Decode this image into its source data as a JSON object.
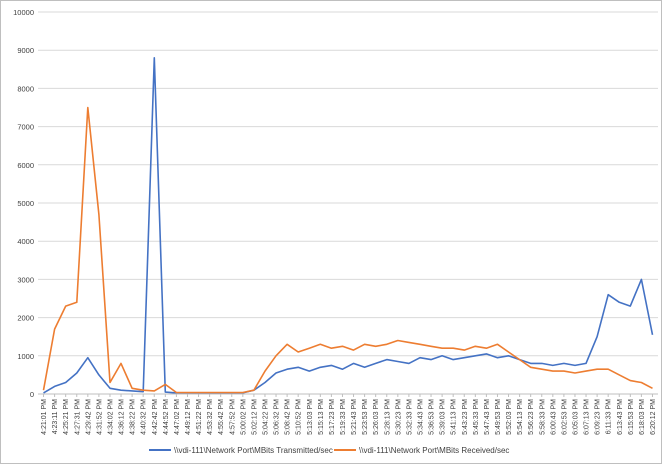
{
  "chart_data": {
    "type": "line",
    "title": "",
    "xlabel": "",
    "ylabel": "",
    "ylim": [
      0,
      10000
    ],
    "yticks": [
      "0",
      "1000",
      "2000",
      "3000",
      "4000",
      "5000",
      "6000",
      "7000",
      "8000",
      "9000",
      "10000"
    ],
    "grid": true,
    "legend_position": "bottom",
    "x_categories": [
      "4:21:01 PM",
      "4:23:11 PM",
      "4:25:21 PM",
      "4:27:31 PM",
      "4:29:42 PM",
      "4:31:52 PM",
      "4:34:02 PM",
      "4:36:12 PM",
      "4:38:22 PM",
      "4:40:32 PM",
      "4:42:42 PM",
      "4:44:52 PM",
      "4:47:02 PM",
      "4:49:12 PM",
      "4:51:22 PM",
      "4:53:32 PM",
      "4:55:42 PM",
      "4:57:52 PM",
      "5:00:02 PM",
      "5:02:12 PM",
      "5:04:22 PM",
      "5:06:32 PM",
      "5:08:42 PM",
      "5:10:52 PM",
      "5:13:03 PM",
      "5:15:13 PM",
      "5:17:23 PM",
      "5:19:33 PM",
      "5:21:43 PM",
      "5:23:53 PM",
      "5:26:03 PM",
      "5:28:13 PM",
      "5:30:23 PM",
      "5:32:33 PM",
      "5:34:43 PM",
      "5:36:53 PM",
      "5:39:03 PM",
      "5:41:13 PM",
      "5:43:23 PM",
      "5:45:33 PM",
      "5:47:43 PM",
      "5:49:53 PM",
      "5:52:03 PM",
      "5:54:13 PM",
      "5:56:23 PM",
      "5:58:33 PM",
      "6:00:43 PM",
      "6:02:53 PM",
      "6:05:03 PM",
      "6:07:13 PM",
      "6:09:23 PM",
      "6:11:33 PM",
      "6:13:43 PM",
      "6:15:53 PM",
      "6:18:03 PM",
      "6:20:12 PM"
    ],
    "series": [
      {
        "name": "\\\\vdi-111\\Network Port\\MBits Transmitted/sec",
        "color": "#4472c4",
        "values": [
          30,
          200,
          300,
          550,
          950,
          500,
          150,
          100,
          80,
          60,
          8800,
          50,
          30,
          30,
          30,
          30,
          30,
          30,
          30,
          100,
          300,
          550,
          650,
          700,
          600,
          700,
          750,
          650,
          800,
          700,
          800,
          900,
          850,
          800,
          950,
          900,
          1000,
          900,
          950,
          1000,
          1050,
          950,
          1000,
          900,
          800,
          800,
          750,
          800,
          750,
          800,
          1500,
          2600,
          2400,
          2300,
          3000,
          1550
        ]
      },
      {
        "name": "\\\\vdi-111\\Network Port\\MBits Received/sec",
        "color": "#ed7d31",
        "values": [
          100,
          1700,
          2300,
          2400,
          7500,
          4700,
          300,
          800,
          150,
          100,
          80,
          250,
          40,
          40,
          40,
          40,
          40,
          40,
          40,
          100,
          600,
          1000,
          1300,
          1100,
          1200,
          1300,
          1200,
          1250,
          1150,
          1300,
          1250,
          1300,
          1400,
          1350,
          1300,
          1250,
          1200,
          1200,
          1150,
          1250,
          1200,
          1300,
          1100,
          900,
          700,
          650,
          600,
          600,
          550,
          600,
          650,
          650,
          500,
          350,
          300,
          150
        ]
      }
    ]
  }
}
